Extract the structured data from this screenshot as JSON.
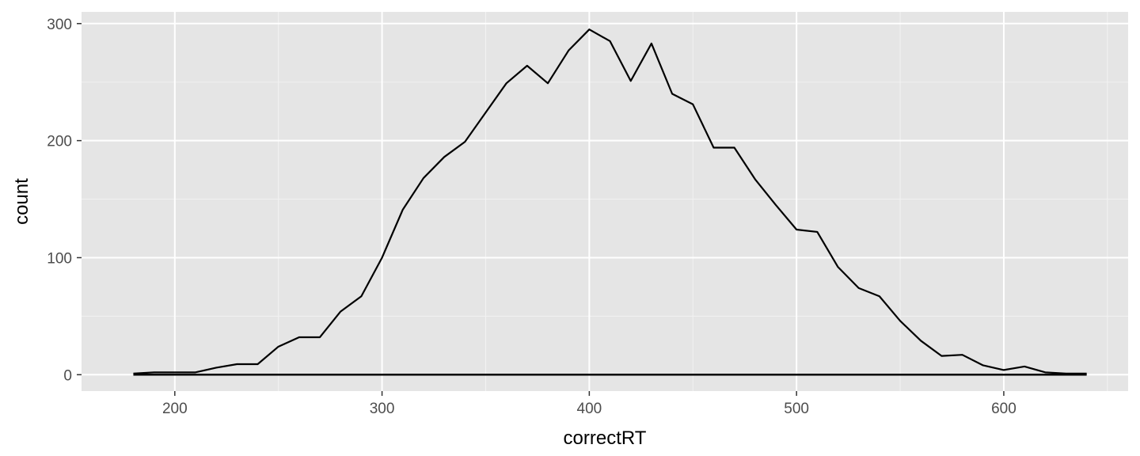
{
  "chart_data": {
    "type": "line",
    "title": "",
    "xlabel": "correctRT",
    "ylabel": "count",
    "xlim": [
      155,
      660
    ],
    "ylim": [
      -14,
      310
    ],
    "x_ticks": [
      200,
      300,
      400,
      500,
      600
    ],
    "y_ticks": [
      0,
      100,
      200,
      300
    ],
    "grid": true,
    "legend": "none",
    "colors": {
      "panel": "#e5e5e5",
      "grid_major": "#ffffff",
      "line": "#000000",
      "tick_label": "#4d4d4d"
    },
    "series": [
      {
        "x": [
          180,
          190,
          200,
          210,
          220,
          230,
          240,
          250,
          260,
          270,
          280,
          290,
          300,
          310,
          320,
          330,
          340,
          350,
          360,
          370,
          380,
          390,
          400,
          410,
          420,
          430,
          440,
          450,
          460,
          470,
          480,
          490,
          500,
          510,
          520,
          530,
          540,
          550,
          560,
          570,
          580,
          590,
          600,
          610,
          620,
          630,
          640
        ],
        "values": [
          1,
          2,
          2,
          2,
          6,
          9,
          9,
          24,
          32,
          32,
          54,
          67,
          100,
          141,
          168,
          186,
          199,
          224,
          249,
          264,
          249,
          277,
          295,
          285,
          251,
          283,
          240,
          231,
          194,
          194,
          167,
          145,
          124,
          122,
          92,
          74,
          67,
          46,
          29,
          16,
          17,
          8,
          4,
          7,
          2,
          1,
          1
        ]
      }
    ],
    "baseline": {
      "y": 0,
      "x_range": [
        180,
        640
      ]
    }
  }
}
